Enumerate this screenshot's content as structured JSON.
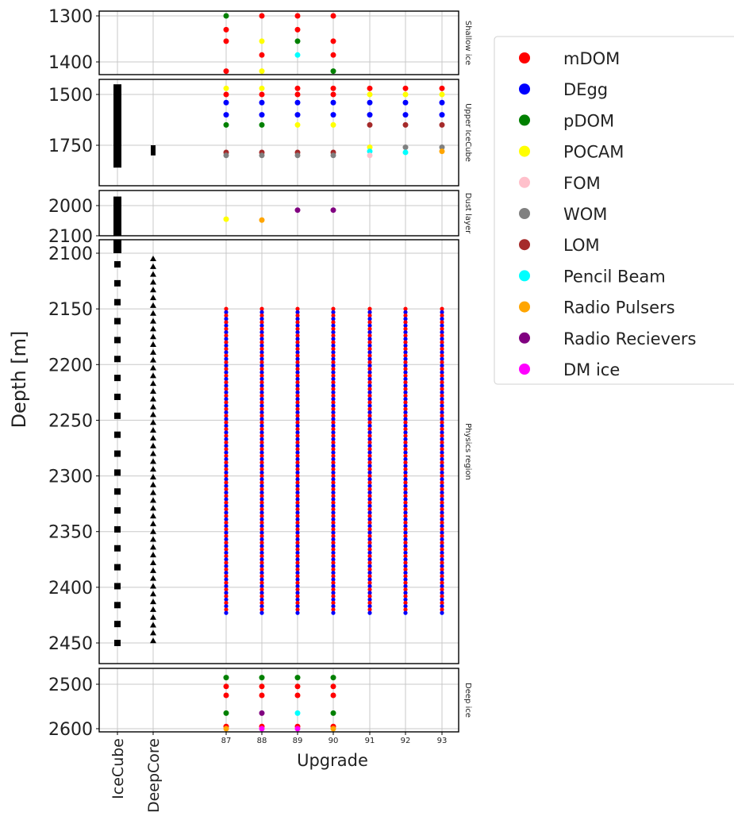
{
  "chart_data": {
    "type": "scatter",
    "ylabel": "Depth [m]",
    "xlabel": "Upgrade",
    "x_categories": [
      "IceCube",
      "DeepCore",
      "87",
      "88",
      "89",
      "90",
      "91",
      "92",
      "93"
    ],
    "panels": [
      {
        "name": "Shallow ice",
        "ylim": [
          1300,
          1430
        ],
        "ticks": [
          1300,
          1400
        ]
      },
      {
        "name": "Upper IceCube",
        "ylim": [
          1440,
          1880
        ],
        "ticks": [
          1500,
          1750
        ]
      },
      {
        "name": "Dust layer",
        "ylim": [
          1970,
          2100
        ],
        "ticks": [
          2000,
          2100
        ]
      },
      {
        "name": "Physics region",
        "ylim": [
          2080,
          2475
        ],
        "ticks": [
          2100,
          2150,
          2200,
          2250,
          2300,
          2350,
          2400,
          2450
        ]
      },
      {
        "name": "Deep ice",
        "ylim": [
          2480,
          2605
        ],
        "ticks": [
          2500,
          2600
        ]
      }
    ],
    "legend": {
      "placement": "outside-right",
      "entries": [
        {
          "label": "mDOM",
          "color": "#ff0000"
        },
        {
          "label": "DEgg",
          "color": "#0000ff"
        },
        {
          "label": "pDOM",
          "color": "#008000"
        },
        {
          "label": "POCAM",
          "color": "#ffff00"
        },
        {
          "label": "FOM",
          "color": "#ffc0cb"
        },
        {
          "label": "WOM",
          "color": "#808080"
        },
        {
          "label": "LOM",
          "color": "#a52a2a"
        },
        {
          "label": "Pencil Beam",
          "color": "#00ffff"
        },
        {
          "label": "Radio Pulsers",
          "color": "#ffa500"
        },
        {
          "label": "Radio Recievers",
          "color": "#800080"
        },
        {
          "label": "DM ice",
          "color": "#ff00ff"
        }
      ]
    },
    "icecube": {
      "marker": "square",
      "color": "#000000",
      "deep_start": 2110,
      "deep_end": 2452,
      "deep_step": 17,
      "shallow_bars": [
        [
          1450,
          1860
        ],
        [
          1960,
          2100
        ]
      ]
    },
    "deepcore": {
      "marker": "triangle",
      "color": "#000000",
      "deep_start": 2105,
      "deep_end": 2450,
      "deep_step": 7,
      "shallow_bars": [
        [
          1750,
          1800
        ]
      ]
    },
    "upgrade": {
      "physics_region": {
        "start": 2150,
        "end": 2425,
        "spacing": 3,
        "pattern": [
          "mDOM",
          "DEgg"
        ]
      },
      "strings": {
        "87": [
          {
            "depth": 1300,
            "type": "pDOM"
          },
          {
            "depth": 1330,
            "type": "mDOM"
          },
          {
            "depth": 1355,
            "type": "mDOM"
          },
          {
            "depth": 1420,
            "type": "mDOM"
          },
          {
            "depth": 1470,
            "type": "POCAM"
          },
          {
            "depth": 1500,
            "type": "mDOM"
          },
          {
            "depth": 1540,
            "type": "DEgg"
          },
          {
            "depth": 1600,
            "type": "DEgg"
          },
          {
            "depth": 1650,
            "type": "pDOM"
          },
          {
            "depth": 1785,
            "type": "LOM"
          },
          {
            "depth": 1800,
            "type": "WOM"
          },
          {
            "depth": 2045,
            "type": "POCAM"
          },
          {
            "depth": 2485,
            "type": "pDOM"
          },
          {
            "depth": 2505,
            "type": "mDOM"
          },
          {
            "depth": 2525,
            "type": "mDOM"
          },
          {
            "depth": 2565,
            "type": "pDOM"
          },
          {
            "depth": 2595,
            "type": "mDOM"
          },
          {
            "depth": 2600,
            "type": "Radio Pulsers"
          }
        ],
        "88": [
          {
            "depth": 1300,
            "type": "mDOM"
          },
          {
            "depth": 1355,
            "type": "POCAM"
          },
          {
            "depth": 1385,
            "type": "mDOM"
          },
          {
            "depth": 1420,
            "type": "POCAM"
          },
          {
            "depth": 1470,
            "type": "POCAM"
          },
          {
            "depth": 1500,
            "type": "mDOM"
          },
          {
            "depth": 1540,
            "type": "DEgg"
          },
          {
            "depth": 1600,
            "type": "DEgg"
          },
          {
            "depth": 1650,
            "type": "pDOM"
          },
          {
            "depth": 1785,
            "type": "LOM"
          },
          {
            "depth": 1800,
            "type": "WOM"
          },
          {
            "depth": 2048,
            "type": "Radio Pulsers"
          },
          {
            "depth": 2485,
            "type": "pDOM"
          },
          {
            "depth": 2505,
            "type": "mDOM"
          },
          {
            "depth": 2525,
            "type": "mDOM"
          },
          {
            "depth": 2565,
            "type": "Radio Recievers"
          },
          {
            "depth": 2595,
            "type": "mDOM"
          },
          {
            "depth": 2600,
            "type": "DM ice"
          }
        ],
        "89": [
          {
            "depth": 1300,
            "type": "mDOM"
          },
          {
            "depth": 1330,
            "type": "mDOM"
          },
          {
            "depth": 1355,
            "type": "pDOM"
          },
          {
            "depth": 1385,
            "type": "Pencil Beam"
          },
          {
            "depth": 1470,
            "type": "mDOM"
          },
          {
            "depth": 1500,
            "type": "mDOM"
          },
          {
            "depth": 1540,
            "type": "DEgg"
          },
          {
            "depth": 1600,
            "type": "DEgg"
          },
          {
            "depth": 1650,
            "type": "POCAM"
          },
          {
            "depth": 1785,
            "type": "LOM"
          },
          {
            "depth": 1800,
            "type": "WOM"
          },
          {
            "depth": 2015,
            "type": "Radio Recievers"
          },
          {
            "depth": 2485,
            "type": "pDOM"
          },
          {
            "depth": 2505,
            "type": "mDOM"
          },
          {
            "depth": 2525,
            "type": "mDOM"
          },
          {
            "depth": 2565,
            "type": "Pencil Beam"
          },
          {
            "depth": 2595,
            "type": "mDOM"
          },
          {
            "depth": 2600,
            "type": "DM ice"
          }
        ],
        "90": [
          {
            "depth": 1300,
            "type": "mDOM"
          },
          {
            "depth": 1355,
            "type": "mDOM"
          },
          {
            "depth": 1385,
            "type": "mDOM"
          },
          {
            "depth": 1420,
            "type": "pDOM"
          },
          {
            "depth": 1470,
            "type": "mDOM"
          },
          {
            "depth": 1500,
            "type": "mDOM"
          },
          {
            "depth": 1540,
            "type": "DEgg"
          },
          {
            "depth": 1600,
            "type": "DEgg"
          },
          {
            "depth": 1650,
            "type": "POCAM"
          },
          {
            "depth": 1785,
            "type": "LOM"
          },
          {
            "depth": 1800,
            "type": "WOM"
          },
          {
            "depth": 2015,
            "type": "Radio Recievers"
          },
          {
            "depth": 2485,
            "type": "pDOM"
          },
          {
            "depth": 2505,
            "type": "mDOM"
          },
          {
            "depth": 2525,
            "type": "mDOM"
          },
          {
            "depth": 2565,
            "type": "pDOM"
          },
          {
            "depth": 2595,
            "type": "mDOM"
          },
          {
            "depth": 2600,
            "type": "Radio Pulsers"
          }
        ],
        "91": [
          {
            "depth": 1470,
            "type": "mDOM"
          },
          {
            "depth": 1500,
            "type": "POCAM"
          },
          {
            "depth": 1540,
            "type": "DEgg"
          },
          {
            "depth": 1600,
            "type": "DEgg"
          },
          {
            "depth": 1650,
            "type": "LOM"
          },
          {
            "depth": 1760,
            "type": "POCAM"
          },
          {
            "depth": 1780,
            "type": "Pencil Beam"
          },
          {
            "depth": 1800,
            "type": "FOM"
          }
        ],
        "92": [
          {
            "depth": 1470,
            "type": "mDOM"
          },
          {
            "depth": 1500,
            "type": "POCAM"
          },
          {
            "depth": 1540,
            "type": "DEgg"
          },
          {
            "depth": 1600,
            "type": "DEgg"
          },
          {
            "depth": 1650,
            "type": "LOM"
          },
          {
            "depth": 1760,
            "type": "WOM"
          },
          {
            "depth": 1785,
            "type": "Pencil Beam"
          }
        ],
        "93": [
          {
            "depth": 1470,
            "type": "mDOM"
          },
          {
            "depth": 1500,
            "type": "POCAM"
          },
          {
            "depth": 1540,
            "type": "DEgg"
          },
          {
            "depth": 1600,
            "type": "DEgg"
          },
          {
            "depth": 1650,
            "type": "LOM"
          },
          {
            "depth": 1760,
            "type": "WOM"
          },
          {
            "depth": 1780,
            "type": "Radio Pulsers"
          }
        ]
      }
    }
  }
}
